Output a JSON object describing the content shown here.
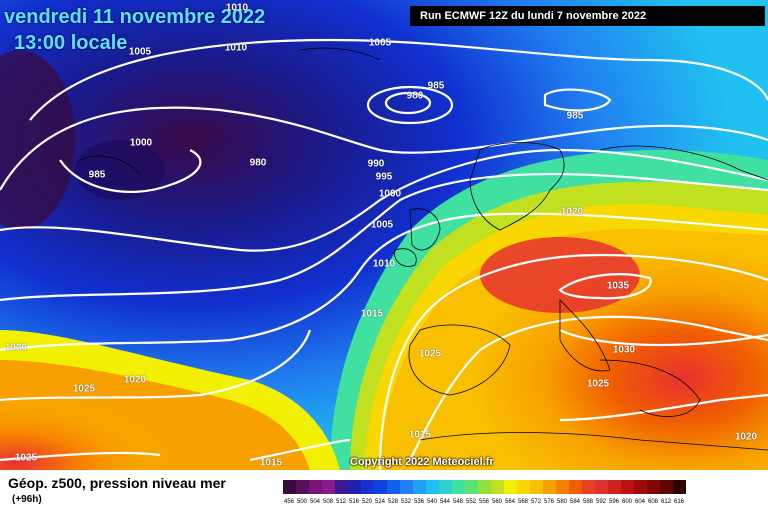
{
  "header": {
    "date": "vendredi 11 novembre 2022",
    "time": "13:00 locale",
    "run": "Run ECMWF 12Z du lundi 7 novembre 2022"
  },
  "copyright": "Copyright 2022 Meteociel.fr",
  "legend": {
    "title": "Géop. z500, pression niveau mer",
    "subtitle": "(+96h)",
    "values": [
      "456",
      "500",
      "504",
      "508",
      "512",
      "516",
      "520",
      "524",
      "528",
      "532",
      "536",
      "540",
      "544",
      "548",
      "552",
      "556",
      "560",
      "564",
      "568",
      "572",
      "576",
      "580",
      "584",
      "588",
      "592",
      "596",
      "600",
      "604",
      "608",
      "612",
      "616"
    ],
    "colors": [
      "#3a0a3a",
      "#5a0f5a",
      "#7a147a",
      "#8a1a8a",
      "#3a1a90",
      "#2020b0",
      "#1a30d0",
      "#1040e0",
      "#1060f0",
      "#2080f8",
      "#20a0f8",
      "#20c0f0",
      "#30d0d0",
      "#40e0a0",
      "#60e070",
      "#90e040",
      "#c0e020",
      "#f0f000",
      "#f8d800",
      "#f8c000",
      "#f8a000",
      "#f88000",
      "#f06000",
      "#e84020",
      "#e03030",
      "#d02020",
      "#c01010",
      "#a00a0a",
      "#800808",
      "#600404",
      "#300000"
    ]
  },
  "isobars": [
    "1010",
    "1005",
    "985",
    "980",
    "985",
    "1000",
    "980",
    "985",
    "990",
    "995",
    "1000",
    "1005",
    "1010",
    "1015",
    "1020",
    "1035",
    "1030",
    "1025",
    "1020",
    "1025",
    "1020",
    "1015",
    "1025",
    "1015",
    "1020",
    "1025",
    "1005",
    "1010"
  ],
  "colors": {
    "deep_blue": "#0a1a9a",
    "navy": "#1a0a5a",
    "purple": "#4a0a4a",
    "orange": "#f89000",
    "red": "#e83030"
  }
}
